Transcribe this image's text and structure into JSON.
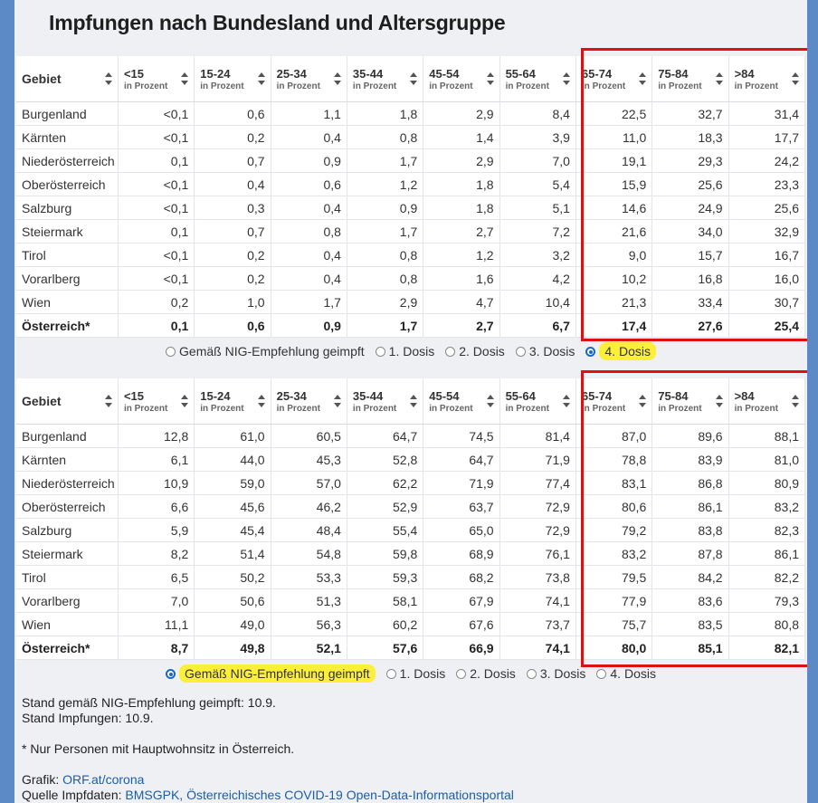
{
  "title": "Impfungen nach Bundesland und Altersgruppe",
  "header": {
    "region_label": "Gebiet",
    "unit_label": "in Prozent",
    "age_groups": [
      "<15",
      "15-24",
      "25-34",
      "35-44",
      "45-54",
      "55-64",
      "65-74",
      "75-84",
      ">84"
    ]
  },
  "chart_data": [
    {
      "type": "table",
      "title": "",
      "unit": "in Prozent",
      "columns": [
        "<15",
        "15-24",
        "25-34",
        "35-44",
        "45-54",
        "55-64",
        "65-74",
        "75-84",
        ">84"
      ],
      "rows": [
        {
          "region": "Burgenland",
          "values": [
            "<0,1",
            "0,6",
            "1,1",
            "1,8",
            "2,9",
            "8,4",
            "22,5",
            "32,7",
            "31,4"
          ]
        },
        {
          "region": "Kärnten",
          "values": [
            "<0,1",
            "0,2",
            "0,4",
            "0,8",
            "1,4",
            "3,9",
            "11,0",
            "18,3",
            "17,7"
          ]
        },
        {
          "region": "Niederösterreich",
          "values": [
            "0,1",
            "0,7",
            "0,9",
            "1,7",
            "2,9",
            "7,0",
            "19,1",
            "29,3",
            "24,2"
          ]
        },
        {
          "region": "Oberösterreich",
          "values": [
            "<0,1",
            "0,4",
            "0,6",
            "1,2",
            "1,8",
            "5,4",
            "15,9",
            "25,6",
            "23,3"
          ]
        },
        {
          "region": "Salzburg",
          "values": [
            "<0,1",
            "0,3",
            "0,4",
            "0,9",
            "1,8",
            "5,1",
            "14,6",
            "24,9",
            "25,6"
          ]
        },
        {
          "region": "Steiermark",
          "values": [
            "0,1",
            "0,7",
            "0,8",
            "1,7",
            "2,7",
            "7,2",
            "21,6",
            "34,0",
            "32,9"
          ]
        },
        {
          "region": "Tirol",
          "values": [
            "<0,1",
            "0,2",
            "0,4",
            "0,8",
            "1,2",
            "3,2",
            "9,0",
            "15,7",
            "16,7"
          ]
        },
        {
          "region": "Vorarlberg",
          "values": [
            "<0,1",
            "0,2",
            "0,4",
            "0,8",
            "1,6",
            "4,2",
            "10,2",
            "16,8",
            "16,0"
          ]
        },
        {
          "region": "Wien",
          "values": [
            "0,2",
            "1,0",
            "1,7",
            "2,9",
            "4,7",
            "10,4",
            "21,3",
            "33,4",
            "30,7"
          ]
        }
      ],
      "total": {
        "region": "Österreich*",
        "values": [
          "0,1",
          "0,6",
          "0,9",
          "1,7",
          "2,7",
          "6,7",
          "17,4",
          "27,6",
          "25,4"
        ]
      }
    },
    {
      "type": "table",
      "title": "",
      "unit": "in Prozent",
      "columns": [
        "<15",
        "15-24",
        "25-34",
        "35-44",
        "45-54",
        "55-64",
        "65-74",
        "75-84",
        ">84"
      ],
      "rows": [
        {
          "region": "Burgenland",
          "values": [
            "12,8",
            "61,0",
            "60,5",
            "64,7",
            "74,5",
            "81,4",
            "87,0",
            "89,6",
            "88,1"
          ]
        },
        {
          "region": "Kärnten",
          "values": [
            "6,1",
            "44,0",
            "45,3",
            "52,8",
            "64,7",
            "71,9",
            "78,8",
            "83,9",
            "81,0"
          ]
        },
        {
          "region": "Niederösterreich",
          "values": [
            "10,9",
            "59,0",
            "57,0",
            "62,2",
            "71,9",
            "77,4",
            "83,1",
            "86,8",
            "80,9"
          ]
        },
        {
          "region": "Oberösterreich",
          "values": [
            "6,6",
            "45,6",
            "46,2",
            "52,9",
            "63,7",
            "72,9",
            "80,6",
            "86,1",
            "83,2"
          ]
        },
        {
          "region": "Salzburg",
          "values": [
            "5,9",
            "45,4",
            "48,4",
            "55,4",
            "65,0",
            "72,9",
            "79,2",
            "83,8",
            "82,3"
          ]
        },
        {
          "region": "Steiermark",
          "values": [
            "8,2",
            "51,4",
            "54,8",
            "59,8",
            "68,9",
            "76,1",
            "83,2",
            "87,8",
            "86,1"
          ]
        },
        {
          "region": "Tirol",
          "values": [
            "6,5",
            "50,2",
            "53,3",
            "59,3",
            "68,2",
            "73,8",
            "79,5",
            "84,2",
            "82,2"
          ]
        },
        {
          "region": "Vorarlberg",
          "values": [
            "7,0",
            "50,6",
            "51,3",
            "58,1",
            "67,9",
            "74,1",
            "77,9",
            "83,6",
            "79,3"
          ]
        },
        {
          "region": "Wien",
          "values": [
            "11,1",
            "49,0",
            "56,3",
            "60,2",
            "67,6",
            "73,7",
            "75,7",
            "83,5",
            "80,8"
          ]
        }
      ],
      "total": {
        "region": "Österreich*",
        "values": [
          "8,7",
          "49,8",
          "52,1",
          "57,6",
          "66,9",
          "74,1",
          "80,0",
          "85,1",
          "82,1"
        ]
      }
    }
  ],
  "radio_groups": [
    {
      "options": [
        "Gemäß NIG-Empfehlung geimpft",
        "1. Dosis",
        "2. Dosis",
        "3. Dosis",
        "4. Dosis"
      ],
      "selected": 4
    },
    {
      "options": [
        "Gemäß NIG-Empfehlung geimpft",
        "1. Dosis",
        "2. Dosis",
        "3. Dosis",
        "4. Dosis"
      ],
      "selected": 0
    }
  ],
  "notes": {
    "stand_nig": "Stand gemäß NIG-Empfehlung geimpft: 10.9.",
    "stand_impfungen": "Stand Impfungen: 10.9.",
    "footnote": "* Nur Personen mit Hauptwohnsitz in Österreich.",
    "grafik_label": "Grafik:",
    "grafik_link": "ORF.at/corona",
    "quelle_label": "Quelle Impfdaten:",
    "quelle_link": "BMSGPK, Österreichisches COVID-19 Open-Data-Informationsportal"
  },
  "colors": {
    "highlight_box": "#e01010",
    "marker": "#fbef3a",
    "link": "#1a5ea8",
    "frame": "#5b8ac6"
  }
}
